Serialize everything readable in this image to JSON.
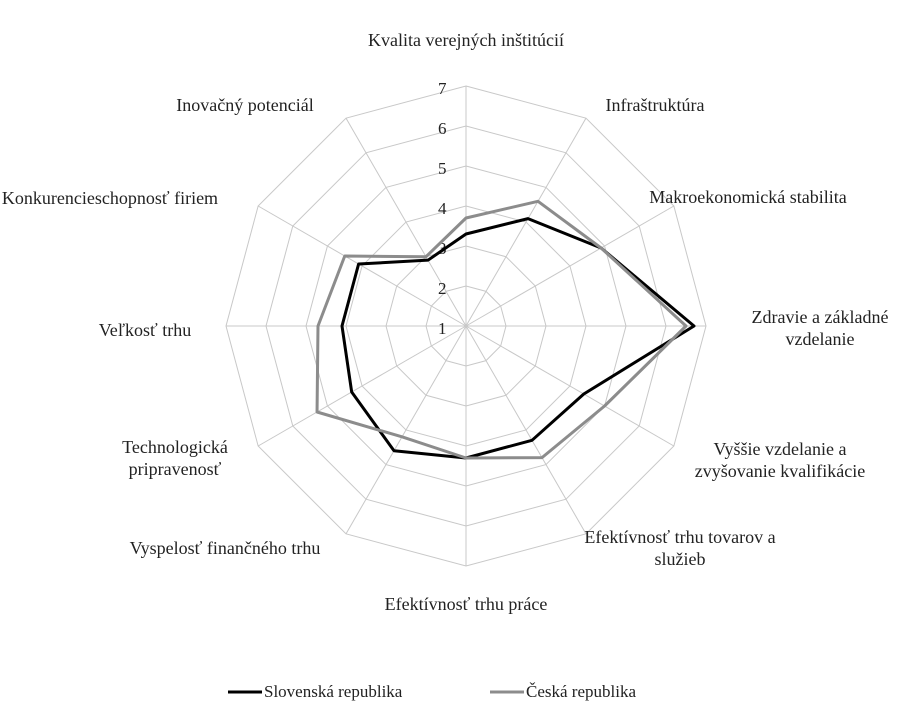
{
  "chart_data": {
    "type": "radar",
    "categories": [
      "Kvalita verejných inštitúcií",
      "Infraštruktúra",
      "Makroekonomická stabilita",
      "Zdravie a základné vzdelanie",
      "Vyššie vzdelanie a zvyšovanie kvalifikácie",
      "Efektívnosť trhu tovarov a služieb",
      "Efektívnosť trhu práce",
      "Vyspelosť finančného trhu",
      "Technologická pripravenosť",
      "Veľkosť trhu",
      "Konkurencieschopnosť firiem",
      "Inovačný potenciál"
    ],
    "series": [
      {
        "name": "Slovenská republika",
        "color": "#000000",
        "values": [
          3.3,
          4.1,
          4.9,
          6.7,
          4.4,
          4.3,
          4.3,
          4.6,
          4.3,
          4.1,
          4.1,
          2.9
        ]
      },
      {
        "name": "Česká republika",
        "color": "#8c8c8c",
        "values": [
          3.7,
          4.6,
          4.9,
          6.5,
          5.0,
          4.8,
          4.3,
          4.2,
          5.3,
          4.7,
          4.5,
          3.0
        ]
      }
    ],
    "rlim": [
      1,
      7
    ],
    "rticks": [
      1,
      2,
      3,
      4,
      5,
      6,
      7
    ],
    "grid": true,
    "legend": "bottom"
  }
}
